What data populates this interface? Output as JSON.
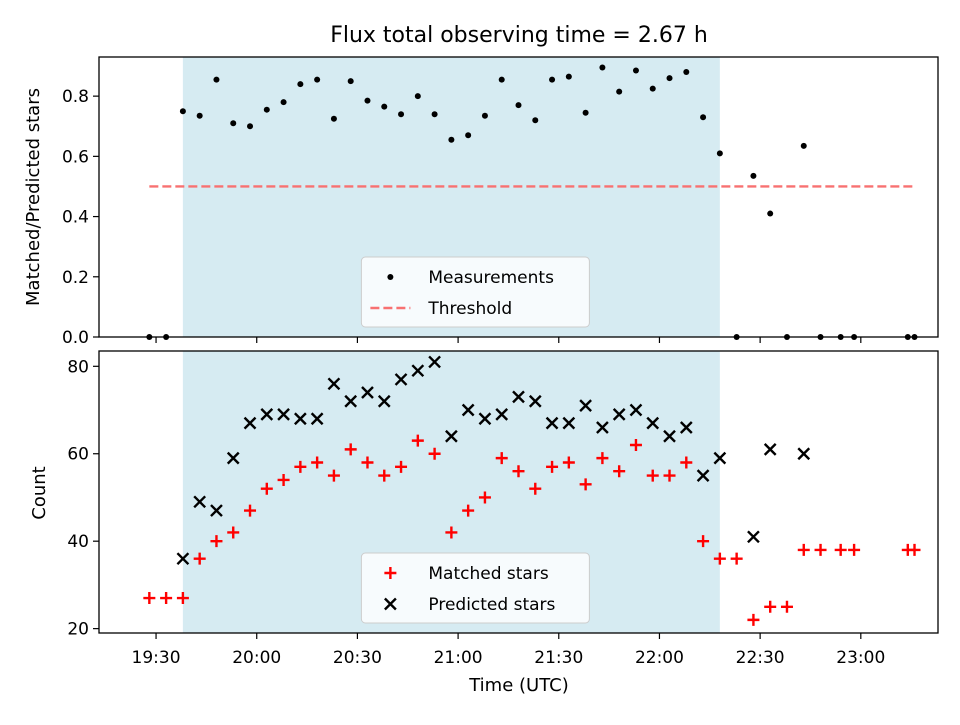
{
  "title": "Flux total observing time = 2.67 h",
  "chart_data": [
    {
      "type": "scatter",
      "title": "Flux total observing time = 2.67 h",
      "xlabel": "",
      "ylabel": "Matched/Predicted stars",
      "x_ticks": [
        "19:30",
        "20:00",
        "20:30",
        "21:00",
        "21:30",
        "22:00",
        "22:30",
        "23:00"
      ],
      "y_ticks": [
        "0.0",
        "0.2",
        "0.4",
        "0.6",
        "0.8"
      ],
      "ylim": [
        0,
        0.93
      ],
      "shaded_span": [
        "19:38",
        "22:18"
      ],
      "threshold": {
        "name": "Threshold",
        "value": 0.5,
        "x_range": [
          "19:28",
          "23:16"
        ],
        "color": "#f87171",
        "style": "dashed"
      },
      "legend_position": "lower center",
      "series": [
        {
          "name": "Measurements",
          "marker": "dot",
          "color": "#000000",
          "points": [
            [
              "19:28",
              0.0
            ],
            [
              "19:33",
              0.0
            ],
            [
              "19:38",
              0.75
            ],
            [
              "19:43",
              0.735
            ],
            [
              "19:48",
              0.855
            ],
            [
              "19:53",
              0.71
            ],
            [
              "19:58",
              0.7
            ],
            [
              "20:03",
              0.755
            ],
            [
              "20:08",
              0.78
            ],
            [
              "20:13",
              0.84
            ],
            [
              "20:18",
              0.855
            ],
            [
              "20:23",
              0.725
            ],
            [
              "20:28",
              0.85
            ],
            [
              "20:33",
              0.785
            ],
            [
              "20:38",
              0.765
            ],
            [
              "20:43",
              0.74
            ],
            [
              "20:48",
              0.8
            ],
            [
              "20:53",
              0.74
            ],
            [
              "20:58",
              0.655
            ],
            [
              "21:03",
              0.67
            ],
            [
              "21:08",
              0.735
            ],
            [
              "21:13",
              0.855
            ],
            [
              "21:18",
              0.77
            ],
            [
              "21:23",
              0.72
            ],
            [
              "21:28",
              0.855
            ],
            [
              "21:33",
              0.865
            ],
            [
              "21:38",
              0.745
            ],
            [
              "21:43",
              0.895
            ],
            [
              "21:48",
              0.815
            ],
            [
              "21:53",
              0.885
            ],
            [
              "21:58",
              0.825
            ],
            [
              "22:03",
              0.86
            ],
            [
              "22:08",
              0.88
            ],
            [
              "22:13",
              0.73
            ],
            [
              "22:18",
              0.61
            ],
            [
              "22:23",
              0.0
            ],
            [
              "22:28",
              0.535
            ],
            [
              "22:33",
              0.41
            ],
            [
              "22:38",
              0.0
            ],
            [
              "22:43",
              0.635
            ],
            [
              "22:48",
              0.0
            ],
            [
              "22:54",
              0.0
            ],
            [
              "22:58",
              0.0
            ],
            [
              "23:14",
              0.0
            ],
            [
              "23:16",
              0.0
            ]
          ]
        }
      ]
    },
    {
      "type": "scatter",
      "title": "",
      "xlabel": "Time (UTC)",
      "ylabel": "Count",
      "x_ticks": [
        "19:30",
        "20:00",
        "20:30",
        "21:00",
        "21:30",
        "22:00",
        "22:30",
        "23:00"
      ],
      "y_ticks": [
        "20",
        "40",
        "60",
        "80"
      ],
      "ylim": [
        19,
        83.5
      ],
      "shaded_span": [
        "19:38",
        "22:18"
      ],
      "legend_position": "lower center",
      "series": [
        {
          "name": "Matched stars",
          "marker": "plus",
          "color": "#ff0000",
          "points": [
            [
              "19:28",
              27
            ],
            [
              "19:33",
              27
            ],
            [
              "19:38",
              27
            ],
            [
              "19:43",
              36
            ],
            [
              "19:48",
              40
            ],
            [
              "19:53",
              42
            ],
            [
              "19:58",
              47
            ],
            [
              "20:03",
              52
            ],
            [
              "20:08",
              54
            ],
            [
              "20:13",
              57
            ],
            [
              "20:18",
              58
            ],
            [
              "20:23",
              55
            ],
            [
              "20:28",
              61
            ],
            [
              "20:33",
              58
            ],
            [
              "20:38",
              55
            ],
            [
              "20:43",
              57
            ],
            [
              "20:48",
              63
            ],
            [
              "20:53",
              60
            ],
            [
              "20:58",
              42
            ],
            [
              "21:03",
              47
            ],
            [
              "21:08",
              50
            ],
            [
              "21:13",
              59
            ],
            [
              "21:18",
              56
            ],
            [
              "21:23",
              52
            ],
            [
              "21:28",
              57
            ],
            [
              "21:33",
              58
            ],
            [
              "21:38",
              53
            ],
            [
              "21:43",
              59
            ],
            [
              "21:48",
              56
            ],
            [
              "21:53",
              62
            ],
            [
              "21:58",
              55
            ],
            [
              "22:03",
              55
            ],
            [
              "22:08",
              58
            ],
            [
              "22:13",
              40
            ],
            [
              "22:18",
              36
            ],
            [
              "22:23",
              36
            ],
            [
              "22:28",
              22
            ],
            [
              "22:33",
              25
            ],
            [
              "22:38",
              25
            ],
            [
              "22:43",
              38
            ],
            [
              "22:48",
              38
            ],
            [
              "22:54",
              38
            ],
            [
              "22:58",
              38
            ],
            [
              "23:14",
              38
            ],
            [
              "23:16",
              38
            ]
          ]
        },
        {
          "name": "Predicted stars",
          "marker": "x",
          "color": "#000000",
          "points": [
            [
              "19:38",
              36
            ],
            [
              "19:43",
              49
            ],
            [
              "19:48",
              47
            ],
            [
              "19:53",
              59
            ],
            [
              "19:58",
              67
            ],
            [
              "20:03",
              69
            ],
            [
              "20:08",
              69
            ],
            [
              "20:13",
              68
            ],
            [
              "20:18",
              68
            ],
            [
              "20:23",
              76
            ],
            [
              "20:28",
              72
            ],
            [
              "20:33",
              74
            ],
            [
              "20:38",
              72
            ],
            [
              "20:43",
              77
            ],
            [
              "20:48",
              79
            ],
            [
              "20:53",
              81
            ],
            [
              "20:58",
              64
            ],
            [
              "21:03",
              70
            ],
            [
              "21:08",
              68
            ],
            [
              "21:13",
              69
            ],
            [
              "21:18",
              73
            ],
            [
              "21:23",
              72
            ],
            [
              "21:28",
              67
            ],
            [
              "21:33",
              67
            ],
            [
              "21:38",
              71
            ],
            [
              "21:43",
              66
            ],
            [
              "21:48",
              69
            ],
            [
              "21:53",
              70
            ],
            [
              "21:58",
              67
            ],
            [
              "22:03",
              64
            ],
            [
              "22:08",
              66
            ],
            [
              "22:13",
              55
            ],
            [
              "22:18",
              59
            ],
            [
              "22:28",
              41
            ],
            [
              "22:33",
              61
            ],
            [
              "22:43",
              60
            ]
          ]
        }
      ]
    }
  ]
}
